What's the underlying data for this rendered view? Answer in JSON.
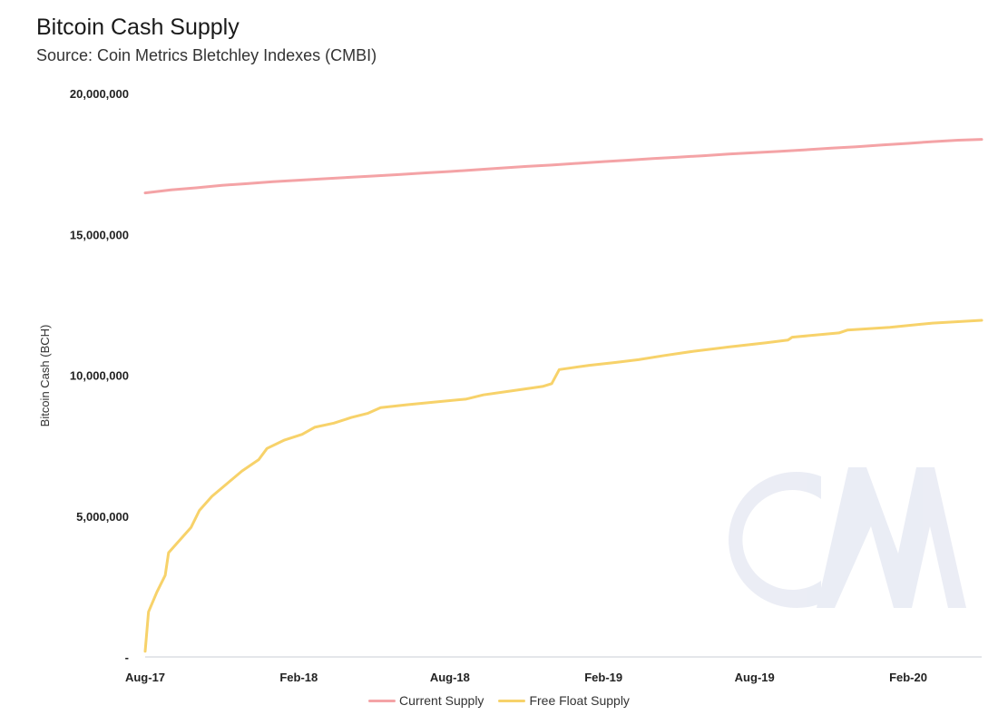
{
  "chart_data": {
    "type": "line",
    "title": "Bitcoin Cash Supply",
    "subtitle": "Source: Coin Metrics Bletchley Indexes (CMBI)",
    "ylabel": "Bitcoin Cash (BCH)",
    "xlabel": "",
    "x_ticks": [
      "Aug-17",
      "Feb-18",
      "Aug-18",
      "Feb-19",
      "Aug-19",
      "Feb-20"
    ],
    "y_ticks": [
      "-",
      "5,000,000",
      "10,000,000",
      "15,000,000",
      "20,000,000"
    ],
    "ylim": [
      0,
      20000000
    ],
    "xlim": [
      "2017-08-01",
      "2020-04-29"
    ],
    "grid": false,
    "legend_position": "bottom",
    "series": [
      {
        "name": "Current Supply",
        "color": "#f4a3a6",
        "points": [
          [
            "2017-08-01",
            16470000
          ],
          [
            "2017-09-01",
            16580000
          ],
          [
            "2017-10-01",
            16650000
          ],
          [
            "2017-11-01",
            16740000
          ],
          [
            "2017-12-01",
            16800000
          ],
          [
            "2018-01-01",
            16870000
          ],
          [
            "2018-02-01",
            16920000
          ],
          [
            "2018-03-01",
            16970000
          ],
          [
            "2018-04-01",
            17020000
          ],
          [
            "2018-05-01",
            17070000
          ],
          [
            "2018-06-01",
            17120000
          ],
          [
            "2018-07-01",
            17180000
          ],
          [
            "2018-08-01",
            17230000
          ],
          [
            "2018-09-01",
            17290000
          ],
          [
            "2018-10-01",
            17350000
          ],
          [
            "2018-11-01",
            17410000
          ],
          [
            "2018-12-01",
            17460000
          ],
          [
            "2019-01-01",
            17520000
          ],
          [
            "2019-02-01",
            17580000
          ],
          [
            "2019-03-01",
            17630000
          ],
          [
            "2019-04-01",
            17690000
          ],
          [
            "2019-05-01",
            17740000
          ],
          [
            "2019-06-01",
            17790000
          ],
          [
            "2019-07-01",
            17850000
          ],
          [
            "2019-08-01",
            17900000
          ],
          [
            "2019-09-01",
            17950000
          ],
          [
            "2019-10-01",
            18000000
          ],
          [
            "2019-11-01",
            18060000
          ],
          [
            "2019-12-01",
            18110000
          ],
          [
            "2020-01-01",
            18170000
          ],
          [
            "2020-02-01",
            18230000
          ],
          [
            "2020-03-01",
            18290000
          ],
          [
            "2020-04-01",
            18340000
          ],
          [
            "2020-04-29",
            18370000
          ]
        ]
      },
      {
        "name": "Free Float Supply",
        "color": "#f7d26a",
        "points": [
          [
            "2017-08-01",
            200000
          ],
          [
            "2017-08-05",
            1600000
          ],
          [
            "2017-08-15",
            2300000
          ],
          [
            "2017-08-25",
            2900000
          ],
          [
            "2017-08-29",
            3700000
          ],
          [
            "2017-09-10",
            4100000
          ],
          [
            "2017-09-25",
            4600000
          ],
          [
            "2017-10-05",
            5200000
          ],
          [
            "2017-10-20",
            5700000
          ],
          [
            "2017-11-05",
            6100000
          ],
          [
            "2017-11-25",
            6600000
          ],
          [
            "2017-12-15",
            7000000
          ],
          [
            "2017-12-25",
            7400000
          ],
          [
            "2018-01-15",
            7700000
          ],
          [
            "2018-02-05",
            7900000
          ],
          [
            "2018-02-20",
            8150000
          ],
          [
            "2018-03-15",
            8300000
          ],
          [
            "2018-04-05",
            8500000
          ],
          [
            "2018-04-25",
            8650000
          ],
          [
            "2018-05-10",
            8850000
          ],
          [
            "2018-06-10",
            8950000
          ],
          [
            "2018-07-15",
            9050000
          ],
          [
            "2018-08-20",
            9150000
          ],
          [
            "2018-09-10",
            9300000
          ],
          [
            "2018-10-15",
            9450000
          ],
          [
            "2018-11-20",
            9600000
          ],
          [
            "2018-12-01",
            9700000
          ],
          [
            "2018-12-10",
            10200000
          ],
          [
            "2019-01-15",
            10350000
          ],
          [
            "2019-02-15",
            10450000
          ],
          [
            "2019-03-15",
            10550000
          ],
          [
            "2019-04-15",
            10700000
          ],
          [
            "2019-05-20",
            10850000
          ],
          [
            "2019-07-01",
            11000000
          ],
          [
            "2019-08-15",
            11150000
          ],
          [
            "2019-09-10",
            11250000
          ],
          [
            "2019-09-15",
            11350000
          ],
          [
            "2019-11-10",
            11500000
          ],
          [
            "2019-11-20",
            11600000
          ],
          [
            "2020-01-10",
            11700000
          ],
          [
            "2020-03-01",
            11850000
          ],
          [
            "2020-04-29",
            11950000
          ]
        ]
      }
    ]
  }
}
